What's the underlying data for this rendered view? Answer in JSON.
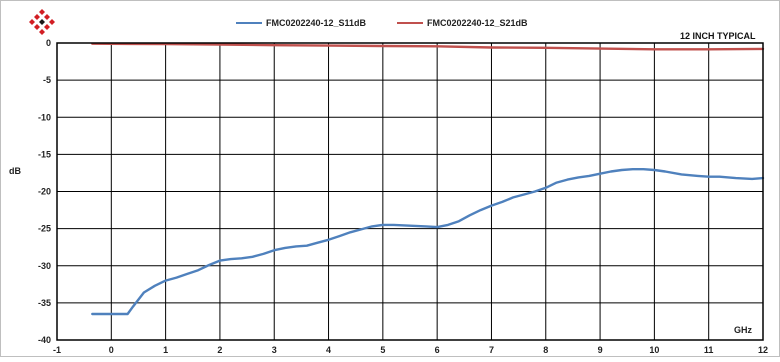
{
  "chart_data": {
    "type": "line",
    "xlabel": "GHz",
    "ylabel": "dB",
    "annotation": "12 INCH TYPICAL",
    "xlim": [
      -1,
      12
    ],
    "ylim": [
      -40,
      0
    ],
    "x_ticks": [
      -1,
      0,
      1,
      2,
      3,
      4,
      5,
      6,
      7,
      8,
      9,
      10,
      11,
      12
    ],
    "y_ticks": [
      0,
      -5,
      -10,
      -15,
      -20,
      -25,
      -30,
      -35,
      -40
    ],
    "grid": true,
    "legend_position": "top-center",
    "series": [
      {
        "name": "FMC0202240-12_S11dB",
        "color": "#4f81bd",
        "points": [
          [
            -0.35,
            -36.5
          ],
          [
            0.0,
            -36.5
          ],
          [
            0.3,
            -36.5
          ],
          [
            0.4,
            -35.5
          ],
          [
            0.6,
            -33.6
          ],
          [
            0.8,
            -32.7
          ],
          [
            1.0,
            -32.0
          ],
          [
            1.2,
            -31.6
          ],
          [
            1.4,
            -31.1
          ],
          [
            1.6,
            -30.6
          ],
          [
            1.8,
            -29.9
          ],
          [
            2.0,
            -29.3
          ],
          [
            2.2,
            -29.1
          ],
          [
            2.4,
            -29.0
          ],
          [
            2.6,
            -28.8
          ],
          [
            2.8,
            -28.4
          ],
          [
            3.0,
            -27.9
          ],
          [
            3.2,
            -27.6
          ],
          [
            3.4,
            -27.4
          ],
          [
            3.6,
            -27.3
          ],
          [
            3.8,
            -26.9
          ],
          [
            4.0,
            -26.5
          ],
          [
            4.2,
            -26.0
          ],
          [
            4.4,
            -25.5
          ],
          [
            4.6,
            -25.1
          ],
          [
            4.8,
            -24.7
          ],
          [
            5.0,
            -24.5
          ],
          [
            5.2,
            -24.5
          ],
          [
            5.5,
            -24.6
          ],
          [
            5.8,
            -24.7
          ],
          [
            6.0,
            -24.8
          ],
          [
            6.2,
            -24.5
          ],
          [
            6.4,
            -24.0
          ],
          [
            6.6,
            -23.2
          ],
          [
            6.8,
            -22.5
          ],
          [
            7.0,
            -21.9
          ],
          [
            7.2,
            -21.4
          ],
          [
            7.4,
            -20.8
          ],
          [
            7.6,
            -20.4
          ],
          [
            7.8,
            -20.0
          ],
          [
            8.0,
            -19.5
          ],
          [
            8.2,
            -18.8
          ],
          [
            8.4,
            -18.4
          ],
          [
            8.6,
            -18.1
          ],
          [
            8.8,
            -17.9
          ],
          [
            9.0,
            -17.6
          ],
          [
            9.2,
            -17.3
          ],
          [
            9.4,
            -17.1
          ],
          [
            9.6,
            -17.0
          ],
          [
            9.8,
            -17.0
          ],
          [
            10.0,
            -17.1
          ],
          [
            10.2,
            -17.3
          ],
          [
            10.5,
            -17.7
          ],
          [
            10.8,
            -17.9
          ],
          [
            11.0,
            -18.0
          ],
          [
            11.2,
            -18.0
          ],
          [
            11.5,
            -18.2
          ],
          [
            11.8,
            -18.3
          ],
          [
            12.0,
            -18.2
          ]
        ]
      },
      {
        "name": "FMC0202240-12_S21dB",
        "color": "#c0504d",
        "points": [
          [
            -0.35,
            -0.1
          ],
          [
            1.0,
            -0.15
          ],
          [
            2.0,
            -0.2
          ],
          [
            3.0,
            -0.3
          ],
          [
            4.0,
            -0.35
          ],
          [
            5.0,
            -0.4
          ],
          [
            6.0,
            -0.45
          ],
          [
            7.0,
            -0.6
          ],
          [
            8.0,
            -0.65
          ],
          [
            9.0,
            -0.75
          ],
          [
            10.0,
            -0.85
          ],
          [
            11.0,
            -0.85
          ],
          [
            12.0,
            -0.8
          ]
        ]
      }
    ]
  }
}
